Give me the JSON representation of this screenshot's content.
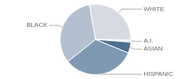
{
  "chart_data": {
    "type": "pie",
    "categories": [
      "WHITE",
      "A.I.",
      "ASIAN",
      "HISPANIC",
      "BLACK"
    ],
    "values": [
      28,
      1,
      5,
      33,
      33
    ],
    "colors": [
      "#d5dae2",
      "#e6eaef",
      "#4e6e8e",
      "#8099b3",
      "#b2c0cf"
    ]
  }
}
